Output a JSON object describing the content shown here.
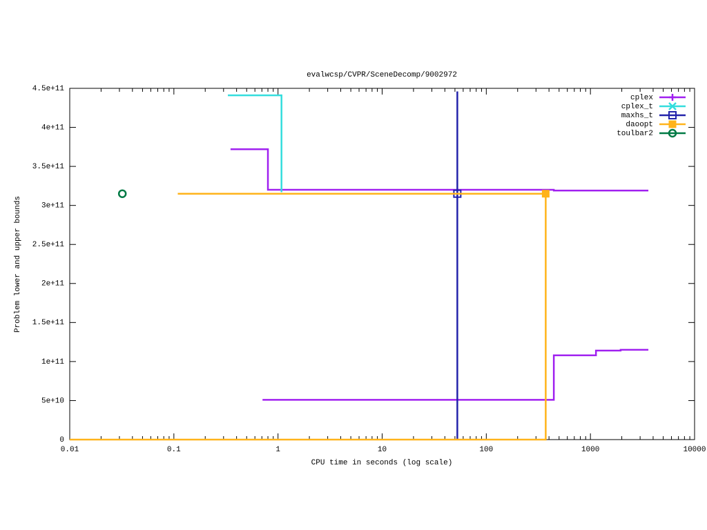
{
  "chart_data": {
    "type": "line",
    "title": "evalwcsp/CVPR/SceneDecomp/9002972",
    "x_label": "CPU time in seconds (log scale)",
    "y_label": "Problem lower and upper bounds",
    "xlog": true,
    "xlim": [
      0.01,
      10000
    ],
    "xticks": [
      0.01,
      0.1,
      1,
      10,
      100,
      1000,
      10000
    ],
    "ylim": [
      0,
      450000000000
    ],
    "yticks": [
      0,
      {
        "value": 50000000000,
        "label": "5e+10"
      },
      {
        "value": 100000000000,
        "label": "1e+11"
      },
      {
        "value": 150000000000,
        "label": "1.5e+11"
      },
      {
        "value": 200000000000,
        "label": "2e+11"
      },
      {
        "value": 250000000000,
        "label": "2.5e+11"
      },
      {
        "value": 300000000000,
        "label": "3e+11"
      },
      {
        "value": 350000000000,
        "label": "3.5e+11"
      },
      {
        "value": 400000000000,
        "label": "4e+11"
      },
      {
        "value": 450000000000,
        "label": "4.5e+11"
      }
    ],
    "grid": false,
    "legend": "top-right",
    "series": [
      {
        "name": "cplex",
        "color": "#a020f0",
        "marker": "plus",
        "marker_at": [],
        "x": [
          0.35,
          0.8,
          0.8,
          445,
          445,
          3600,
          null,
          0.71,
          445,
          445,
          1130,
          1130,
          1950,
          1950,
          3600
        ],
        "values": [
          372000000000,
          372000000000,
          320000000000,
          320000000000,
          319000000000,
          319000000000,
          null,
          51000000000,
          51000000000,
          108000000000,
          108000000000,
          114000000000,
          114000000000,
          115000000000,
          115000000000
        ]
      },
      {
        "name": "cplex_t",
        "color": "#33dddd",
        "marker": "cross",
        "marker_at": [],
        "x": [
          0.33,
          1.08,
          1.08
        ],
        "values": [
          441000000000,
          441000000000,
          317000000000
        ]
      },
      {
        "name": "maxhs_t",
        "color": "#2222aa",
        "marker": "square",
        "marker_at": [
          1
        ],
        "x": [
          52.7,
          52.7,
          52.7
        ],
        "values": [
          446000000000,
          315000000000,
          0
        ]
      },
      {
        "name": "daoopt",
        "color": "#ffb31a",
        "marker": "filled-square",
        "marker_at": [
          1
        ],
        "x": [
          0.109,
          372,
          372,
          0.01
        ],
        "values": [
          315000000000,
          315000000000,
          0,
          0
        ]
      },
      {
        "name": "toulbar2",
        "color": "#007a45",
        "marker": "circle",
        "marker_at": [
          0
        ],
        "x": [
          0.032
        ],
        "values": [
          315000000000
        ]
      }
    ]
  }
}
